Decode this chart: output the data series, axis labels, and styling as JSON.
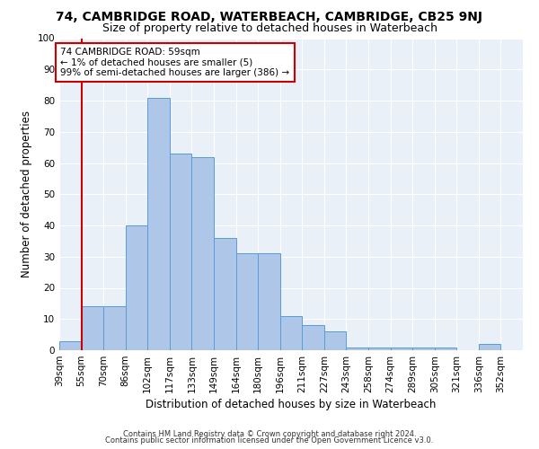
{
  "title1": "74, CAMBRIDGE ROAD, WATERBEACH, CAMBRIDGE, CB25 9NJ",
  "title2": "Size of property relative to detached houses in Waterbeach",
  "xlabel": "Distribution of detached houses by size in Waterbeach",
  "ylabel": "Number of detached properties",
  "annotation_line1": "74 CAMBRIDGE ROAD: 59sqm",
  "annotation_line2": "← 1% of detached houses are smaller (5)",
  "annotation_line3": "99% of semi-detached houses are larger (386) →",
  "footer1": "Contains HM Land Registry data © Crown copyright and database right 2024.",
  "footer2": "Contains public sector information licensed under the Open Government Licence v3.0.",
  "bar_color": "#aec6e8",
  "bar_edge_color": "#5b9bd5",
  "vline_bar_index": 1,
  "vline_color": "#cc0000",
  "annotation_box_color": "#cc0000",
  "categories": [
    "39sqm",
    "55sqm",
    "70sqm",
    "86sqm",
    "102sqm",
    "117sqm",
    "133sqm",
    "149sqm",
    "164sqm",
    "180sqm",
    "196sqm",
    "211sqm",
    "227sqm",
    "243sqm",
    "258sqm",
    "274sqm",
    "289sqm",
    "305sqm",
    "321sqm",
    "336sqm",
    "352sqm"
  ],
  "values": [
    3,
    14,
    14,
    40,
    81,
    63,
    62,
    36,
    31,
    31,
    11,
    8,
    6,
    1,
    1,
    1,
    1,
    1,
    0,
    2,
    0
  ],
  "ylim": [
    0,
    100
  ],
  "yticks": [
    0,
    10,
    20,
    30,
    40,
    50,
    60,
    70,
    80,
    90,
    100
  ],
  "bg_color": "#eaf0f8",
  "grid_color": "#ffffff",
  "title_fontsize": 10,
  "subtitle_fontsize": 9,
  "tick_fontsize": 7.5,
  "ylabel_fontsize": 8.5,
  "xlabel_fontsize": 8.5,
  "annotation_fontsize": 7.5,
  "footer_fontsize": 6
}
